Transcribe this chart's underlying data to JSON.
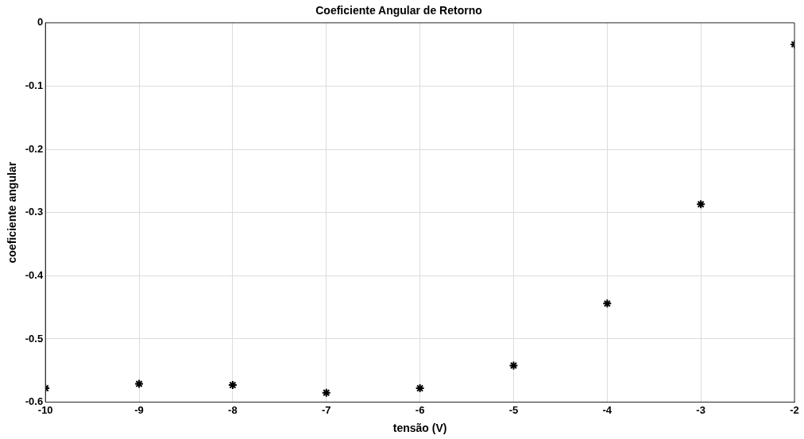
{
  "chart_data": {
    "type": "scatter",
    "title": "Coeficiente Angular de Retorno",
    "xlabel": "tensão (V)",
    "ylabel": "coeficiente angular",
    "x": [
      -10,
      -9,
      -8,
      -7,
      -6,
      -5,
      -4,
      -3,
      -2
    ],
    "series": [
      {
        "color": "#000000",
        "values": [
          -0.578,
          -0.571,
          -0.573,
          -0.585,
          -0.578,
          -0.542,
          -0.444,
          -0.287,
          -0.034
        ]
      }
    ],
    "xlim": [
      -10,
      -2
    ],
    "xticks": [
      -10,
      -9,
      -8,
      -7,
      -6,
      -5,
      -4,
      -3,
      -2
    ],
    "ylim": [
      -0.6,
      0
    ],
    "yticks": [
      -0.6,
      -0.5,
      -0.4,
      -0.3,
      -0.2,
      -0.1,
      0
    ],
    "grid": true,
    "legend": false,
    "marker": "cross"
  }
}
